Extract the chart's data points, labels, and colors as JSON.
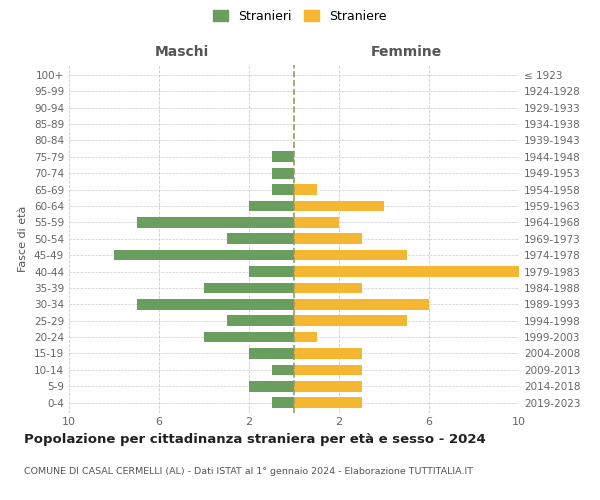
{
  "age_groups": [
    "0-4",
    "5-9",
    "10-14",
    "15-19",
    "20-24",
    "25-29",
    "30-34",
    "35-39",
    "40-44",
    "45-49",
    "50-54",
    "55-59",
    "60-64",
    "65-69",
    "70-74",
    "75-79",
    "80-84",
    "85-89",
    "90-94",
    "95-99",
    "100+"
  ],
  "birth_years": [
    "2019-2023",
    "2014-2018",
    "2009-2013",
    "2004-2008",
    "1999-2003",
    "1994-1998",
    "1989-1993",
    "1984-1988",
    "1979-1983",
    "1974-1978",
    "1969-1973",
    "1964-1968",
    "1959-1963",
    "1954-1958",
    "1949-1953",
    "1944-1948",
    "1939-1943",
    "1934-1938",
    "1929-1933",
    "1924-1928",
    "≤ 1923"
  ],
  "maschi": [
    1,
    2,
    1,
    2,
    4,
    3,
    7,
    4,
    2,
    8,
    3,
    7,
    2,
    1,
    1,
    1,
    0,
    0,
    0,
    0,
    0
  ],
  "femmine": [
    3,
    3,
    3,
    3,
    1,
    5,
    6,
    3,
    10,
    5,
    3,
    2,
    4,
    1,
    0,
    0,
    0,
    0,
    0,
    0,
    0
  ],
  "color_maschi": "#6a9e5e",
  "color_femmine": "#f5b731",
  "title": "Popolazione per cittadinanza straniera per età e sesso - 2024",
  "subtitle": "COMUNE DI CASAL CERMELLI (AL) - Dati ISTAT al 1° gennaio 2024 - Elaborazione TUTTITALIA.IT",
  "legend_maschi": "Stranieri",
  "legend_femmine": "Straniere",
  "xlabel_left": "Maschi",
  "xlabel_right": "Femmine",
  "ylabel_left": "Fasce di età",
  "xlim": 10,
  "background_color": "#ffffff",
  "grid_color": "#cccccc"
}
